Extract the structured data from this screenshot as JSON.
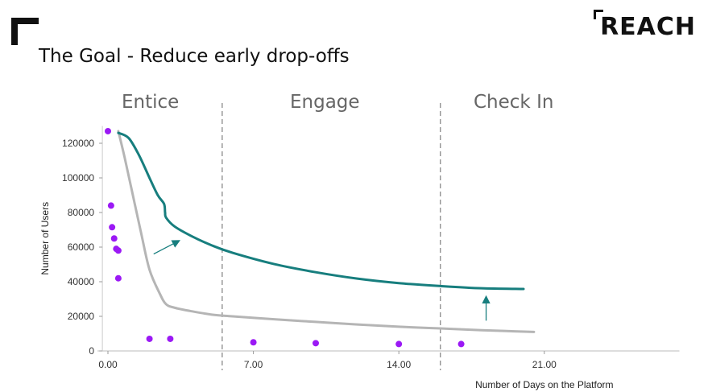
{
  "header": {
    "title": "The Goal - Reduce early drop-offs",
    "logo_text": "REACH"
  },
  "phases": [
    "Entice",
    "Engage",
    "Check In"
  ],
  "chart_data": {
    "type": "line",
    "xlabel": "Number of Days on the Platform",
    "ylabel": "Number of Users",
    "xlim": [
      -0.5,
      27.5
    ],
    "ylim": [
      0,
      130000
    ],
    "x_ticks": [
      0,
      7,
      14,
      21
    ],
    "x_tick_labels": [
      "0.00",
      "7.00",
      "14.00",
      "21.00"
    ],
    "y_ticks": [
      0,
      20000,
      40000,
      60000,
      80000,
      100000,
      120000
    ],
    "y_tick_labels": [
      "0",
      "20000",
      "40000",
      "60000",
      "80000",
      "100000",
      "120000"
    ],
    "phase_dividers": [
      5.5,
      16
    ],
    "scatter": {
      "color": "#9b19f5",
      "x": [
        0.0,
        0.15,
        0.2,
        0.3,
        0.4,
        0.5,
        0.5,
        2.0,
        3.0,
        7.0,
        10.0,
        14.0,
        17.0
      ],
      "y": [
        127000,
        84000,
        71500,
        65000,
        59000,
        58000,
        42000,
        7000,
        7000,
        5000,
        4500,
        4000,
        4000
      ]
    },
    "series": [
      {
        "color": "#b5b5b5",
        "x": [
          0.5,
          0.8,
          1.2,
          1.6,
          2.0,
          2.5,
          2.8,
          3.2,
          4,
          5,
          6,
          8,
          10,
          12,
          14,
          16,
          18,
          20.5
        ],
        "y": [
          127000,
          112000,
          90000,
          68000,
          47000,
          33000,
          27000,
          25000,
          23000,
          21000,
          20000,
          18300,
          16800,
          15300,
          14000,
          13000,
          12000,
          11000
        ]
      },
      {
        "color": "#177e7e",
        "x": [
          0.5,
          1.0,
          1.5,
          2.0,
          2.4,
          2.7,
          2.75,
          2.8,
          3.2,
          4,
          5,
          6,
          8,
          10,
          12,
          14,
          16,
          18,
          20
        ],
        "y": [
          126000,
          123000,
          113000,
          100000,
          90000,
          85000,
          80000,
          77000,
          72000,
          66500,
          61000,
          56700,
          50200,
          45500,
          41800,
          39200,
          37500,
          36200,
          35800
        ]
      }
    ],
    "arrows": [
      {
        "x0": 2.2,
        "y0": 56000,
        "x1": 3.4,
        "y1": 63500
      },
      {
        "x0": 18.2,
        "y0": 17500,
        "x1": 18.2,
        "y1": 31000
      }
    ]
  }
}
